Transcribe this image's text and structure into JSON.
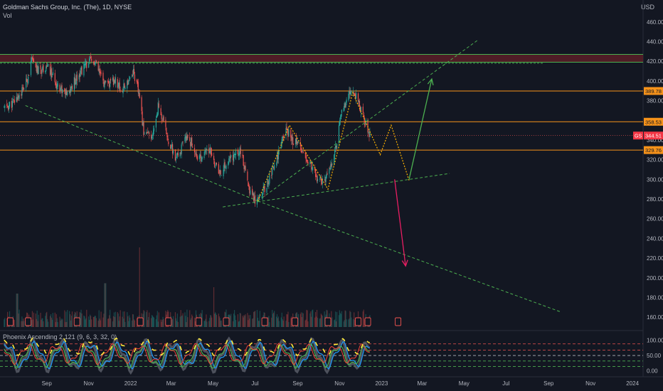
{
  "legend": {
    "symbol": "Goldman Sachs Group, Inc. (The), 1D, NYSE",
    "volume": "Vol",
    "indicator": "Phoenix Ascending 2.121 (9, 6, 3, 32, 0)"
  },
  "currency": "USD",
  "colors": {
    "background": "#131722",
    "grid": "#1e222d",
    "up": "#26a69a",
    "down": "#ef5350",
    "horizontal_line": "#f7931a",
    "resistance_green": "#4caf50",
    "resistance_red": "#b22833",
    "channel": "#4caf50",
    "projection": "#ffb300",
    "arrow_up": "#4caf50",
    "arrow_down": "#e91e63",
    "price_tag": "#f7931a",
    "last_price_tag": "#f23645"
  },
  "chart_data": {
    "type": "candlestick",
    "price_axis_ticks": [
      160,
      180,
      200,
      220,
      240,
      260,
      280,
      300,
      320,
      340,
      360,
      380,
      400,
      420,
      440,
      460
    ],
    "price_range": [
      150,
      475
    ],
    "time_axis_labels": [
      "Sep",
      "Nov",
      "2022",
      "Mar",
      "May",
      "Jul",
      "Sep",
      "Nov",
      "2023",
      "Mar",
      "May",
      "Jul",
      "Sep",
      "Nov",
      "2024"
    ],
    "price_tags": [
      {
        "value": "389.78",
        "price": 389.78
      },
      {
        "value": "358.53",
        "price": 358.53
      },
      {
        "value": "329.76",
        "price": 329.76
      },
      {
        "value": "344.51",
        "price": 344.51,
        "prefix": "GS"
      }
    ],
    "horizontal_levels": [
      389.78,
      358.53,
      329.76
    ],
    "resistance_zone": [
      419,
      427
    ],
    "resistance_line": 418,
    "close_path": [
      [
        "2021-07-01",
        372
      ],
      [
        "2021-07-15",
        378
      ],
      [
        "2021-08-01",
        395
      ],
      [
        "2021-08-10",
        420
      ],
      [
        "2021-08-20",
        410
      ],
      [
        "2021-09-01",
        415
      ],
      [
        "2021-09-15",
        398
      ],
      [
        "2021-10-01",
        385
      ],
      [
        "2021-10-15",
        405
      ],
      [
        "2021-11-01",
        420
      ],
      [
        "2021-11-10",
        418
      ],
      [
        "2021-11-25",
        395
      ],
      [
        "2021-12-10",
        400
      ],
      [
        "2021-12-20",
        390
      ],
      [
        "2022-01-05",
        410
      ],
      [
        "2022-01-12",
        390
      ],
      [
        "2022-01-20",
        350
      ],
      [
        "2022-02-01",
        340
      ],
      [
        "2022-02-10",
        375
      ],
      [
        "2022-02-25",
        340
      ],
      [
        "2022-03-08",
        320
      ],
      [
        "2022-03-25",
        345
      ],
      [
        "2022-04-10",
        320
      ],
      [
        "2022-04-25",
        330
      ],
      [
        "2022-05-10",
        305
      ],
      [
        "2022-05-25",
        320
      ],
      [
        "2022-06-10",
        330
      ],
      [
        "2022-06-20",
        295
      ],
      [
        "2022-07-01",
        280
      ],
      [
        "2022-07-15",
        290
      ],
      [
        "2022-08-01",
        320
      ],
      [
        "2022-08-15",
        350
      ],
      [
        "2022-08-25",
        340
      ],
      [
        "2022-09-10",
        330
      ],
      [
        "2022-09-25",
        305
      ],
      [
        "2022-10-10",
        295
      ],
      [
        "2022-10-25",
        330
      ],
      [
        "2022-11-05",
        370
      ],
      [
        "2022-11-15",
        385
      ],
      [
        "2022-11-25",
        388
      ],
      [
        "2022-12-05",
        365
      ],
      [
        "2022-12-15",
        345
      ]
    ],
    "volume_spikes": [
      [
        "2022-01-15",
        1.0
      ],
      [
        "2021-11-25",
        0.55
      ],
      [
        "2022-05-01",
        0.5
      ],
      [
        "2021-07-20",
        0.42
      ]
    ],
    "trendlines": [
      {
        "points": [
          [
            "2021-08-01",
            375
          ],
          [
            "2022-07-05",
            278
          ]
        ],
        "style": "dashed"
      },
      {
        "points": [
          [
            "2022-07-05",
            278
          ],
          [
            "2023-05-20",
            441
          ]
        ],
        "style": "dashed"
      },
      {
        "points": [
          [
            "2022-05-15",
            272
          ],
          [
            "2023-04-10",
            306
          ]
        ],
        "style": "dashed"
      },
      {
        "points": [
          [
            "2022-07-05",
            278
          ],
          [
            "2023-09-20",
            165
          ]
        ],
        "style": "dashed"
      }
    ],
    "projection_path": [
      [
        "2022-07-05",
        278
      ],
      [
        "2022-08-20",
        355
      ],
      [
        "2022-10-15",
        290
      ],
      [
        "2022-11-20",
        388
      ],
      [
        "2022-12-30",
        325
      ],
      [
        "2023-01-15",
        355
      ],
      [
        "2023-02-10",
        299
      ]
    ],
    "arrows": [
      {
        "from": [
          "2023-02-10",
          300
        ],
        "to": [
          "2023-03-15",
          402
        ],
        "direction": "up"
      },
      {
        "from": [
          "2023-01-20",
          300
        ],
        "to": [
          "2023-02-05",
          212
        ],
        "direction": "down"
      }
    ],
    "event_markers": [
      "2021-07-10",
      "2021-08-05",
      "2021-10-15",
      "2022-01-15",
      "2022-02-25",
      "2022-04-10",
      "2022-05-20",
      "2022-07-15",
      "2022-08-28",
      "2022-10-15",
      "2022-11-28",
      "2022-12-12",
      "2023-01-25"
    ],
    "indicator_axis_ticks": [
      0,
      50,
      100
    ],
    "indicator_range": [
      -15,
      120
    ],
    "indicator_levels": [
      88,
      68,
      50,
      32,
      14
    ]
  }
}
